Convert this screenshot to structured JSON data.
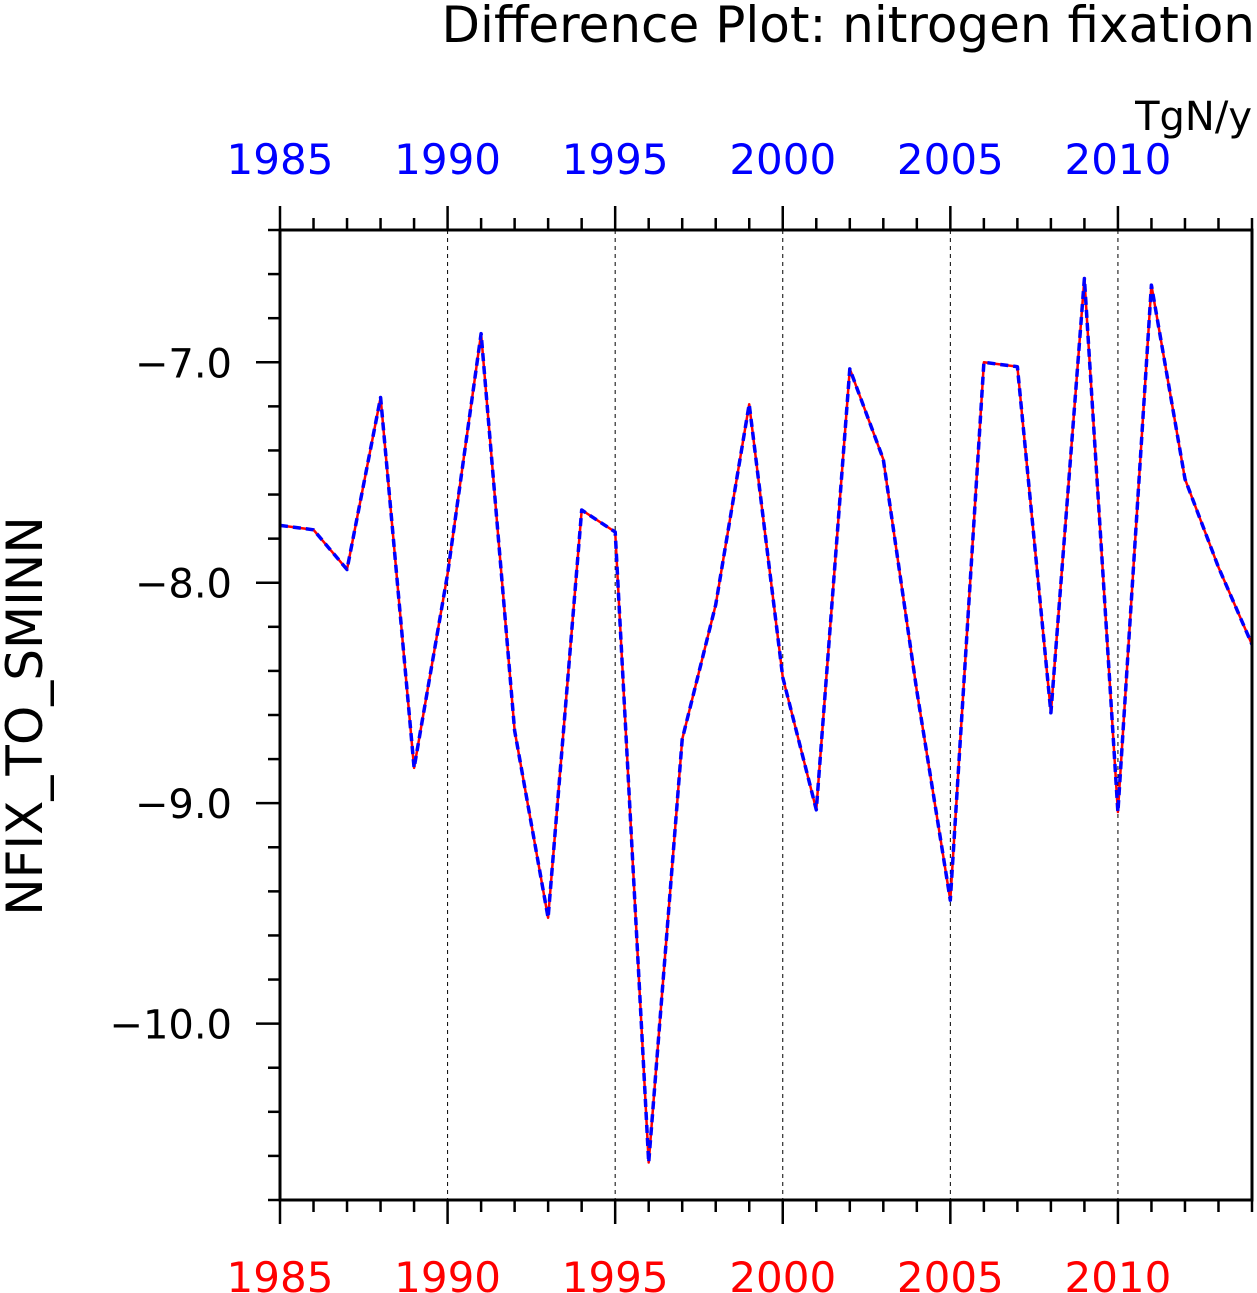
{
  "chart_data": {
    "type": "line",
    "title": "Difference Plot: nitrogen fixation",
    "units": "TgN/y",
    "ylabel": "NFIX_TO_SMINN",
    "xlim": [
      1985,
      2014
    ],
    "ylim": [
      -10.8,
      -6.4
    ],
    "x_ticks": [
      1985,
      1990,
      1995,
      2000,
      2005,
      2010
    ],
    "x_tick_labels": [
      "1985",
      "1990",
      "1995",
      "2000",
      "2005",
      "2010"
    ],
    "y_ticks": [
      -7.0,
      -8.0,
      -9.0,
      -10.0
    ],
    "y_tick_labels": [
      "−7.0",
      "−8.0",
      "−9.0",
      "−10.0"
    ],
    "top_axis_color": "#0000ff",
    "bottom_axis_color": "#ff0000",
    "grid_x": true,
    "series": [
      {
        "color": "#ff0000",
        "style": "solid",
        "x": [
          1985,
          1986,
          1987,
          1988,
          1989,
          1990,
          1991,
          1992,
          1993,
          1994,
          1995,
          1996,
          1997,
          1998,
          1999,
          2000,
          2001,
          2002,
          2003,
          2004,
          2005,
          2006,
          2007,
          2008,
          2009,
          2010,
          2011,
          2012,
          2013,
          2014
        ],
        "y": [
          -7.74,
          -7.76,
          -7.94,
          -7.16,
          -8.84,
          -7.96,
          -6.87,
          -8.67,
          -9.52,
          -7.67,
          -7.77,
          -10.63,
          -8.71,
          -8.1,
          -7.19,
          -8.43,
          -9.03,
          -7.03,
          -7.44,
          -8.49,
          -9.44,
          -7.0,
          -7.02,
          -8.59,
          -6.62,
          -9.04,
          -6.65,
          -7.53,
          -7.93,
          -8.28
        ]
      },
      {
        "color": "#0000ff",
        "style": "dashed",
        "x": [
          1985,
          1986,
          1987,
          1988,
          1989,
          1990,
          1991,
          1992,
          1993,
          1994,
          1995,
          1996,
          1997,
          1998,
          1999,
          2000,
          2001,
          2002,
          2003,
          2004,
          2005,
          2006,
          2007,
          2008,
          2009,
          2010,
          2011,
          2012,
          2013,
          2014
        ],
        "y": [
          -7.74,
          -7.76,
          -7.94,
          -7.16,
          -8.84,
          -7.96,
          -6.87,
          -8.67,
          -9.52,
          -7.67,
          -7.77,
          -10.63,
          -8.71,
          -8.1,
          -7.19,
          -8.43,
          -9.03,
          -7.03,
          -7.44,
          -8.49,
          -9.44,
          -7.0,
          -7.02,
          -8.59,
          -6.62,
          -9.04,
          -6.65,
          -7.53,
          -7.93,
          -8.28
        ]
      }
    ]
  }
}
